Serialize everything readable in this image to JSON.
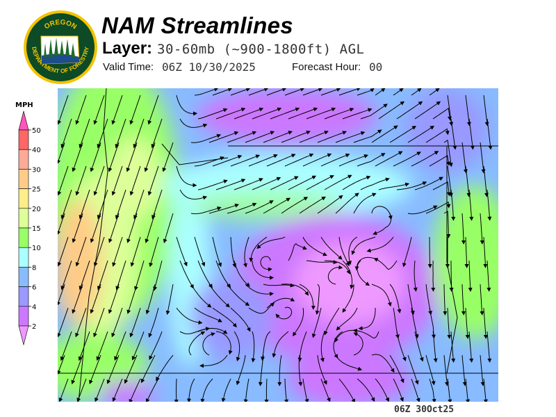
{
  "header": {
    "title": "NAM Streamlines",
    "layer_label": "Layer:",
    "layer_value": "30-60mb (~900-1800ft) AGL",
    "valid_time_label": "Valid Time:",
    "valid_time_value": "06Z 10/30/2025",
    "forecast_hour_label": "Forecast Hour:",
    "forecast_hour_value": "00"
  },
  "logo": {
    "text_top": "OREGON",
    "text_bottom": "DEPARTMENT OF FORESTRY"
  },
  "legend": {
    "unit": "MPH",
    "ticks": [
      "50",
      "40",
      "30",
      "25",
      "20",
      "15",
      "10",
      "8",
      "6",
      "4",
      "2"
    ],
    "colors": {
      "above_50": "#ff55bb",
      "40-50": "#ff6666",
      "30-40": "#ffaa99",
      "25-30": "#ffcc88",
      "20-25": "#ffee88",
      "15-20": "#ddff99",
      "10-15": "#99ff66",
      "8-10": "#aaffff",
      "6-8": "#88bbff",
      "4-6": "#9999ff",
      "2-4": "#cc77ff",
      "below_2": "#ee99ff"
    }
  },
  "footer": {
    "stamp": "06Z 30Oct25"
  }
}
